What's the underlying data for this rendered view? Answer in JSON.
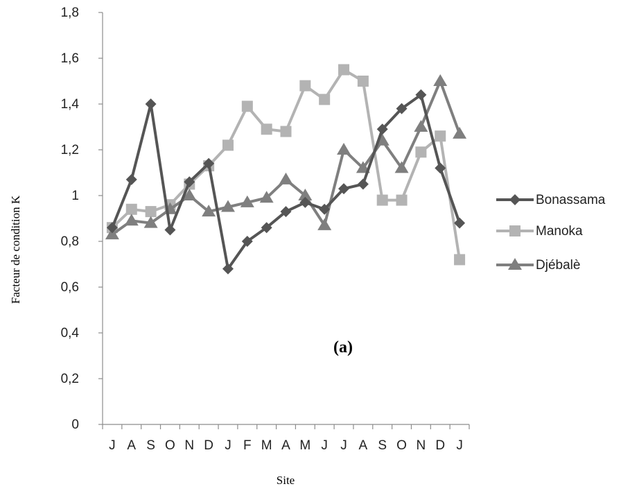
{
  "chart_data": {
    "type": "line",
    "title": "",
    "xlabel": "Site",
    "ylabel": "Facteur de condition K",
    "annotation": "(a)",
    "categories": [
      "J",
      "A",
      "S",
      "O",
      "N",
      "D",
      "J",
      "F",
      "M",
      "A",
      "M",
      "J",
      "J",
      "A",
      "S",
      "O",
      "N",
      "D",
      "J"
    ],
    "ylim": [
      0,
      1.8
    ],
    "yticks": [
      0,
      0.2,
      0.4,
      0.6,
      0.8,
      1,
      1.2,
      1.4,
      1.6,
      1.8
    ],
    "ytick_labels": [
      "0",
      "0,2",
      "0,4",
      "0,6",
      "0,8",
      "1",
      "1,2",
      "1,4",
      "1,6",
      "1,8"
    ],
    "grid": false,
    "legend_position": "right",
    "series": [
      {
        "name": "Bonassama",
        "marker": "diamond",
        "color": "#555555",
        "values": [
          0.86,
          1.07,
          1.4,
          0.85,
          1.06,
          1.14,
          0.68,
          0.8,
          0.86,
          0.93,
          0.97,
          0.94,
          1.03,
          1.05,
          1.29,
          1.38,
          1.44,
          1.12,
          0.88
        ]
      },
      {
        "name": "Manoka",
        "marker": "square",
        "color": "#b3b3b3",
        "values": [
          0.86,
          0.94,
          0.93,
          0.96,
          1.05,
          1.13,
          1.22,
          1.39,
          1.29,
          1.28,
          1.48,
          1.42,
          1.55,
          1.5,
          0.98,
          0.98,
          1.19,
          1.26,
          0.72
        ]
      },
      {
        "name": "Djébalè",
        "marker": "triangle",
        "color": "#7f7f7f",
        "values": [
          0.83,
          0.89,
          0.88,
          0.94,
          1.0,
          0.93,
          0.95,
          0.97,
          0.99,
          1.07,
          1.0,
          0.87,
          1.2,
          1.12,
          1.24,
          1.12,
          1.3,
          1.5,
          1.27
        ]
      }
    ]
  }
}
